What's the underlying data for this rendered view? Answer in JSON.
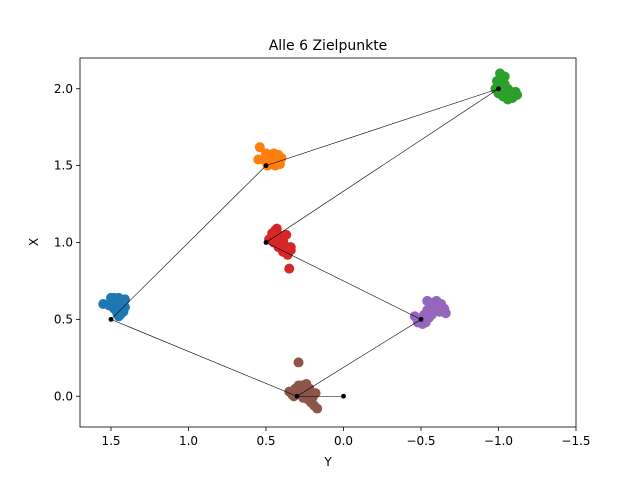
{
  "chart_data": {
    "type": "scatter",
    "title": "Alle 6 Zielpunkte",
    "xlabel": "Y",
    "ylabel": "X",
    "xlim": [
      1.7,
      -1.5
    ],
    "ylim": [
      -0.2,
      2.2
    ],
    "x_ticks": [
      1.5,
      1.0,
      0.5,
      0.0,
      -0.5,
      -1.0,
      -1.5
    ],
    "x_tick_labels": [
      "1.5",
      "1.0",
      "0.5",
      "0.0",
      "−0.5",
      "−1.0",
      "−1.5"
    ],
    "y_ticks": [
      0.0,
      0.5,
      1.0,
      1.5,
      2.0
    ],
    "y_tick_labels": [
      "0.0",
      "0.5",
      "1.0",
      "1.5",
      "2.0"
    ],
    "grid": false,
    "series": [
      {
        "color": "#1f77b4",
        "points": [
          [
            1.55,
            0.6
          ],
          [
            1.5,
            0.64
          ],
          [
            1.47,
            0.63
          ],
          [
            1.45,
            0.64
          ],
          [
            1.43,
            0.62
          ],
          [
            1.42,
            0.6
          ],
          [
            1.41,
            0.58
          ],
          [
            1.42,
            0.55
          ],
          [
            1.44,
            0.53
          ],
          [
            1.46,
            0.54
          ],
          [
            1.48,
            0.57
          ],
          [
            1.49,
            0.61
          ],
          [
            1.46,
            0.61
          ],
          [
            1.44,
            0.58
          ],
          [
            1.47,
            0.58
          ],
          [
            1.43,
            0.56
          ],
          [
            1.45,
            0.52
          ],
          [
            1.41,
            0.63
          ],
          [
            1.48,
            0.64
          ],
          [
            1.51,
            0.59
          ]
        ]
      },
      {
        "color": "#ff7f0e",
        "points": [
          [
            0.54,
            1.62
          ],
          [
            0.5,
            1.58
          ],
          [
            0.48,
            1.57
          ],
          [
            0.45,
            1.58
          ],
          [
            0.42,
            1.57
          ],
          [
            0.4,
            1.55
          ],
          [
            0.42,
            1.52
          ],
          [
            0.44,
            1.5
          ],
          [
            0.47,
            1.53
          ],
          [
            0.52,
            1.54
          ],
          [
            0.55,
            1.54
          ],
          [
            0.49,
            1.5
          ],
          [
            0.43,
            1.55
          ],
          [
            0.46,
            1.56
          ],
          [
            0.41,
            1.51
          ],
          [
            0.47,
            1.55
          ]
        ]
      },
      {
        "color": "#2ca02c",
        "points": [
          [
            -1.0,
            2.02
          ],
          [
            -1.02,
            2.06
          ],
          [
            -1.04,
            2.03
          ],
          [
            -1.06,
            2.0
          ],
          [
            -1.08,
            1.98
          ],
          [
            -1.1,
            1.97
          ],
          [
            -1.12,
            1.96
          ],
          [
            -1.09,
            1.94
          ],
          [
            -1.06,
            1.93
          ],
          [
            -1.03,
            1.95
          ],
          [
            -1.0,
            1.97
          ],
          [
            -0.98,
            2.0
          ],
          [
            -0.99,
            2.05
          ],
          [
            -1.01,
            2.1
          ],
          [
            -1.04,
            2.08
          ],
          [
            -1.07,
            1.95
          ],
          [
            -1.11,
            1.98
          ],
          [
            -1.05,
            1.97
          ],
          [
            -1.02,
            1.99
          ]
        ]
      },
      {
        "color": "#d62728",
        "points": [
          [
            0.48,
            1.02
          ],
          [
            0.46,
            1.06
          ],
          [
            0.44,
            1.08
          ],
          [
            0.42,
            1.05
          ],
          [
            0.4,
            1.02
          ],
          [
            0.38,
            0.98
          ],
          [
            0.36,
            0.96
          ],
          [
            0.34,
            0.95
          ],
          [
            0.36,
            0.92
          ],
          [
            0.39,
            0.94
          ],
          [
            0.42,
            0.97
          ],
          [
            0.45,
            1.0
          ],
          [
            0.35,
            0.83
          ],
          [
            0.37,
            1.05
          ],
          [
            0.41,
            0.99
          ],
          [
            0.43,
            1.09
          ],
          [
            0.39,
            1.01
          ],
          [
            0.34,
            0.97
          ],
          [
            0.44,
            1.03
          ]
        ]
      },
      {
        "color": "#9467bd",
        "points": [
          [
            -0.48,
            0.48
          ],
          [
            -0.5,
            0.5
          ],
          [
            -0.52,
            0.53
          ],
          [
            -0.54,
            0.56
          ],
          [
            -0.56,
            0.59
          ],
          [
            -0.58,
            0.61
          ],
          [
            -0.6,
            0.62
          ],
          [
            -0.63,
            0.6
          ],
          [
            -0.65,
            0.57
          ],
          [
            -0.66,
            0.54
          ],
          [
            -0.55,
            0.51
          ],
          [
            -0.51,
            0.47
          ],
          [
            -0.53,
            0.48
          ],
          [
            -0.57,
            0.53
          ],
          [
            -0.59,
            0.57
          ],
          [
            -0.54,
            0.62
          ],
          [
            -0.62,
            0.55
          ],
          [
            -0.46,
            0.52
          ]
        ]
      },
      {
        "color": "#8c564b",
        "points": [
          [
            0.29,
            0.22
          ],
          [
            0.35,
            0.03
          ],
          [
            0.33,
            0.01
          ],
          [
            0.31,
            0.05
          ],
          [
            0.29,
            0.07
          ],
          [
            0.27,
            0.03
          ],
          [
            0.25,
            0.0
          ],
          [
            0.23,
            -0.02
          ],
          [
            0.21,
            -0.04
          ],
          [
            0.19,
            -0.06
          ],
          [
            0.17,
            -0.08
          ],
          [
            0.2,
            0.01
          ],
          [
            0.22,
            0.05
          ],
          [
            0.24,
            0.08
          ],
          [
            0.26,
            -0.01
          ],
          [
            0.28,
            0.04
          ],
          [
            0.3,
            0.02
          ],
          [
            0.32,
            0.0
          ],
          [
            0.18,
            0.02
          ],
          [
            0.27,
            0.07
          ],
          [
            0.23,
            0.03
          ],
          [
            0.2,
            -0.01
          ]
        ]
      }
    ],
    "targets": [
      [
        1.5,
        0.5
      ],
      [
        0.5,
        1.5
      ],
      [
        -1.0,
        2.0
      ],
      [
        0.5,
        1.0
      ],
      [
        -0.5,
        0.5
      ],
      [
        0.3,
        0.0
      ],
      [
        0.0,
        0.0
      ]
    ],
    "path": [
      [
        0.0,
        0.0
      ],
      [
        0.3,
        0.0
      ],
      [
        1.5,
        0.5
      ],
      [
        0.5,
        1.5
      ],
      [
        -1.0,
        2.0
      ],
      [
        0.5,
        1.0
      ],
      [
        -0.5,
        0.5
      ],
      [
        0.3,
        0.0
      ]
    ]
  }
}
